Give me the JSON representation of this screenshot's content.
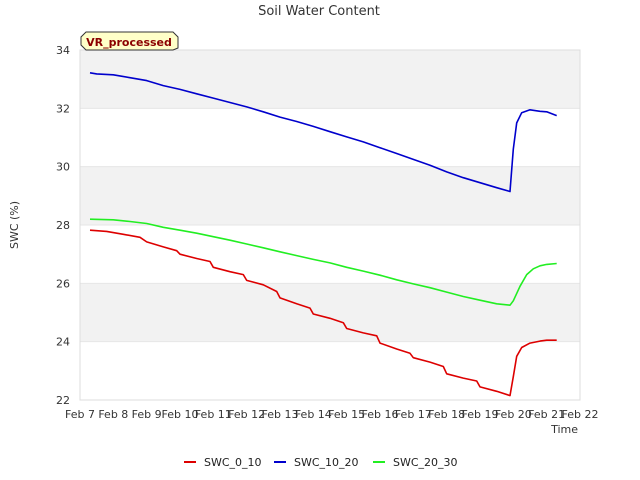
{
  "chart_data": {
    "type": "line",
    "title": "Soil Water Content",
    "xlabel": "Time",
    "ylabel": "SWC (%)",
    "badge": "VR_processed",
    "xlim": [
      7,
      22
    ],
    "ylim": [
      22,
      34
    ],
    "x_ticks": [
      {
        "v": 7,
        "label": "Feb 7"
      },
      {
        "v": 8,
        "label": "Feb 8"
      },
      {
        "v": 9,
        "label": "Feb 9"
      },
      {
        "v": 10,
        "label": "Feb 10"
      },
      {
        "v": 11,
        "label": "Feb 11"
      },
      {
        "v": 12,
        "label": "Feb 12"
      },
      {
        "v": 13,
        "label": "Feb 13"
      },
      {
        "v": 14,
        "label": "Feb 14"
      },
      {
        "v": 15,
        "label": "Feb 15"
      },
      {
        "v": 16,
        "label": "Feb 16"
      },
      {
        "v": 17,
        "label": "Feb 17"
      },
      {
        "v": 18,
        "label": "Feb 18"
      },
      {
        "v": 19,
        "label": "Feb 19"
      },
      {
        "v": 20,
        "label": "Feb 20"
      },
      {
        "v": 21,
        "label": "Feb 21"
      },
      {
        "v": 22,
        "label": "Feb 22"
      }
    ],
    "y_ticks": [
      22,
      24,
      26,
      28,
      30,
      32,
      34
    ],
    "legend_position": "bottom",
    "series": [
      {
        "name": "SWC_0_10",
        "color": "#dd0000",
        "points": [
          [
            7.3,
            27.82
          ],
          [
            7.8,
            27.78
          ],
          [
            8.3,
            27.68
          ],
          [
            8.8,
            27.58
          ],
          [
            9.0,
            27.42
          ],
          [
            9.5,
            27.25
          ],
          [
            9.9,
            27.12
          ],
          [
            10.0,
            27.0
          ],
          [
            10.5,
            26.85
          ],
          [
            10.9,
            26.75
          ],
          [
            11.0,
            26.55
          ],
          [
            11.5,
            26.4
          ],
          [
            11.9,
            26.3
          ],
          [
            12.0,
            26.1
          ],
          [
            12.5,
            25.95
          ],
          [
            12.9,
            25.72
          ],
          [
            13.0,
            25.5
          ],
          [
            13.5,
            25.3
          ],
          [
            13.9,
            25.15
          ],
          [
            14.0,
            24.95
          ],
          [
            14.5,
            24.8
          ],
          [
            14.9,
            24.65
          ],
          [
            15.0,
            24.45
          ],
          [
            15.5,
            24.3
          ],
          [
            15.9,
            24.2
          ],
          [
            16.0,
            23.95
          ],
          [
            16.5,
            23.75
          ],
          [
            16.9,
            23.6
          ],
          [
            17.0,
            23.45
          ],
          [
            17.5,
            23.3
          ],
          [
            17.9,
            23.15
          ],
          [
            18.0,
            22.9
          ],
          [
            18.5,
            22.75
          ],
          [
            18.9,
            22.65
          ],
          [
            19.0,
            22.45
          ],
          [
            19.5,
            22.3
          ],
          [
            19.9,
            22.15
          ],
          [
            20.0,
            22.8
          ],
          [
            20.1,
            23.5
          ],
          [
            20.25,
            23.8
          ],
          [
            20.5,
            23.95
          ],
          [
            20.8,
            24.02
          ],
          [
            21.0,
            24.05
          ],
          [
            21.3,
            24.05
          ]
        ]
      },
      {
        "name": "SWC_10_20",
        "color": "#0000cc",
        "points": [
          [
            7.3,
            33.22
          ],
          [
            7.5,
            33.18
          ],
          [
            8.0,
            33.15
          ],
          [
            8.5,
            33.05
          ],
          [
            9.0,
            32.95
          ],
          [
            9.5,
            32.78
          ],
          [
            10.0,
            32.65
          ],
          [
            10.5,
            32.5
          ],
          [
            11.0,
            32.35
          ],
          [
            11.5,
            32.2
          ],
          [
            12.0,
            32.05
          ],
          [
            12.5,
            31.88
          ],
          [
            13.0,
            31.7
          ],
          [
            13.5,
            31.55
          ],
          [
            14.0,
            31.38
          ],
          [
            14.5,
            31.2
          ],
          [
            15.0,
            31.02
          ],
          [
            15.5,
            30.85
          ],
          [
            16.0,
            30.65
          ],
          [
            16.5,
            30.45
          ],
          [
            17.0,
            30.25
          ],
          [
            17.5,
            30.05
          ],
          [
            18.0,
            29.82
          ],
          [
            18.5,
            29.62
          ],
          [
            19.0,
            29.45
          ],
          [
            19.5,
            29.28
          ],
          [
            19.9,
            29.15
          ],
          [
            20.0,
            30.6
          ],
          [
            20.1,
            31.5
          ],
          [
            20.25,
            31.85
          ],
          [
            20.5,
            31.95
          ],
          [
            20.8,
            31.9
          ],
          [
            21.0,
            31.88
          ],
          [
            21.3,
            31.75
          ]
        ]
      },
      {
        "name": "SWC_20_30",
        "color": "#22ee22",
        "points": [
          [
            7.3,
            28.2
          ],
          [
            8.0,
            28.18
          ],
          [
            8.5,
            28.12
          ],
          [
            9.0,
            28.05
          ],
          [
            9.5,
            27.92
          ],
          [
            10.0,
            27.82
          ],
          [
            10.5,
            27.72
          ],
          [
            11.0,
            27.6
          ],
          [
            11.5,
            27.48
          ],
          [
            12.0,
            27.35
          ],
          [
            12.5,
            27.22
          ],
          [
            13.0,
            27.08
          ],
          [
            13.5,
            26.95
          ],
          [
            14.0,
            26.82
          ],
          [
            14.5,
            26.7
          ],
          [
            15.0,
            26.55
          ],
          [
            15.5,
            26.42
          ],
          [
            16.0,
            26.28
          ],
          [
            16.5,
            26.12
          ],
          [
            17.0,
            25.98
          ],
          [
            17.5,
            25.85
          ],
          [
            18.0,
            25.7
          ],
          [
            18.5,
            25.55
          ],
          [
            19.0,
            25.42
          ],
          [
            19.5,
            25.3
          ],
          [
            19.9,
            25.25
          ],
          [
            20.0,
            25.4
          ],
          [
            20.2,
            25.9
          ],
          [
            20.4,
            26.3
          ],
          [
            20.6,
            26.5
          ],
          [
            20.8,
            26.6
          ],
          [
            21.0,
            26.65
          ],
          [
            21.3,
            26.68
          ]
        ]
      }
    ]
  }
}
